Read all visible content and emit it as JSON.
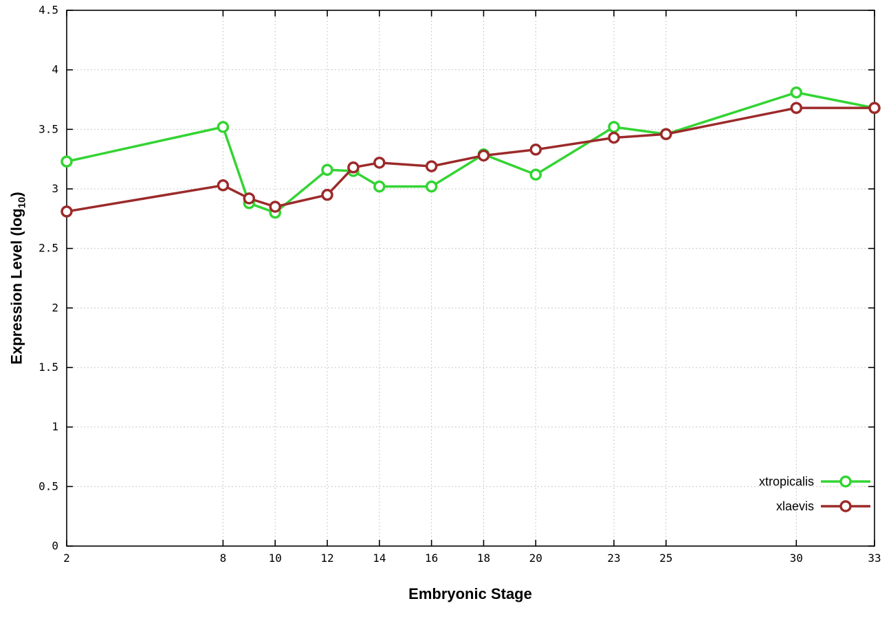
{
  "chart_data": {
    "type": "line",
    "title": "",
    "xlabel": "Embryonic Stage",
    "ylabel": "Expression Level (log10)",
    "ylabel_parts": {
      "main": "Expression Level (log",
      "sub": "10",
      "close": ")"
    },
    "xlim": [
      2,
      33
    ],
    "ylim": [
      0,
      4.5
    ],
    "xticks": [
      2,
      8,
      10,
      12,
      14,
      16,
      18,
      20,
      23,
      25,
      30,
      33
    ],
    "yticks": [
      0,
      0.5,
      1,
      1.5,
      2,
      2.5,
      3,
      3.5,
      4,
      4.5
    ],
    "grid": true,
    "legend_position": "bottom-right",
    "x": [
      2,
      8,
      9,
      10,
      12,
      13,
      14,
      16,
      18,
      20,
      23,
      25,
      30,
      33
    ],
    "series": [
      {
        "name": "xtropicalis",
        "color": "#33d433",
        "values": [
          3.23,
          3.52,
          2.88,
          2.8,
          3.16,
          3.15,
          3.02,
          3.02,
          3.29,
          3.12,
          3.52,
          3.46,
          3.81,
          3.68
        ]
      },
      {
        "name": "xlaevis",
        "color": "#9c2a2a",
        "values": [
          2.81,
          3.03,
          2.92,
          2.85,
          2.95,
          3.18,
          3.22,
          3.19,
          3.28,
          3.33,
          3.43,
          3.46,
          3.68,
          3.68
        ]
      }
    ],
    "colors": {
      "grid": "#c8c8c8",
      "axis": "#000000",
      "tick_text": "#000000"
    }
  }
}
